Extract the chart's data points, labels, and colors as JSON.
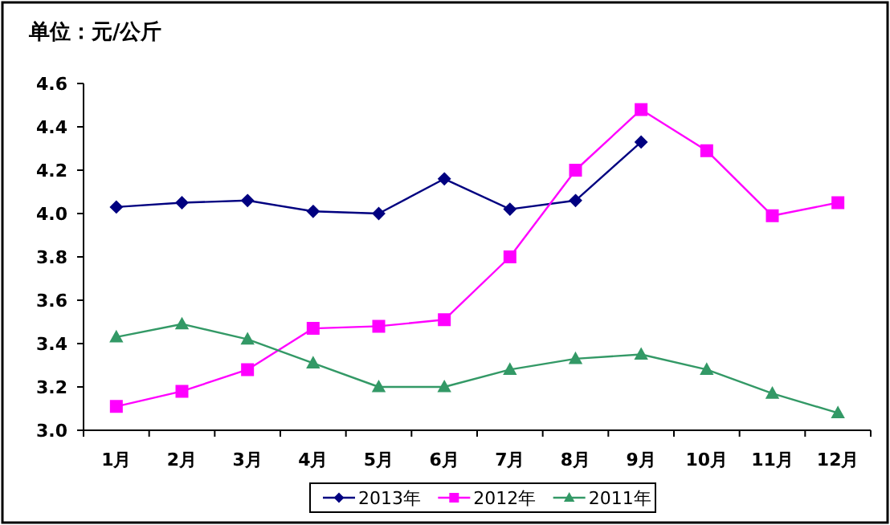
{
  "chart_data": {
    "type": "line",
    "title": "单位：元/公斤",
    "categories": [
      "1月",
      "2月",
      "3月",
      "4月",
      "5月",
      "6月",
      "7月",
      "8月",
      "9月",
      "10月",
      "11月",
      "12月"
    ],
    "ylim": [
      3.0,
      4.6
    ],
    "yticks": [
      {
        "value": 3.0,
        "label": "3.0"
      },
      {
        "value": 3.2,
        "label": "3.2"
      },
      {
        "value": 3.4,
        "label": "3.4"
      },
      {
        "value": 3.6,
        "label": "3.6"
      },
      {
        "value": 3.8,
        "label": "3.8"
      },
      {
        "value": 4.0,
        "label": "4.0"
      },
      {
        "value": 4.2,
        "label": "4.2"
      },
      {
        "value": 4.4,
        "label": "4.4"
      },
      {
        "value": 4.6,
        "label": "4.6"
      }
    ],
    "grid": false,
    "legend": "bottom",
    "series": [
      {
        "name": "2013年",
        "color": "#000080",
        "marker": "diamond",
        "values": [
          4.03,
          4.05,
          4.06,
          4.01,
          4.0,
          4.16,
          4.02,
          4.06,
          4.33,
          null,
          null,
          null
        ]
      },
      {
        "name": "2012年",
        "color": "#ff00ff",
        "marker": "square",
        "values": [
          3.11,
          3.18,
          3.28,
          3.47,
          3.48,
          3.51,
          3.8,
          4.2,
          4.48,
          4.29,
          3.99,
          4.05
        ]
      },
      {
        "name": "2011年",
        "color": "#339966",
        "marker": "triangle",
        "values": [
          3.43,
          3.49,
          3.42,
          3.31,
          3.2,
          3.2,
          3.28,
          3.33,
          3.35,
          3.28,
          3.17,
          3.08
        ]
      }
    ]
  }
}
